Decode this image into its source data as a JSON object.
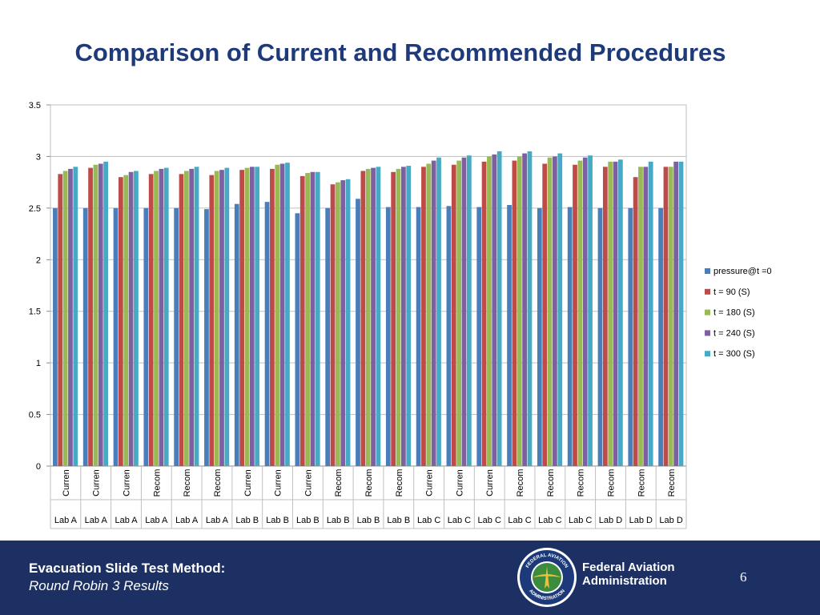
{
  "slide": {
    "title": "Comparison of Current and Recommended Procedures",
    "footer_title": "Evacuation Slide Test Method:",
    "footer_subtitle": "Round Robin 3 Results",
    "agency_line1": "Federal Aviation",
    "agency_line2": "Administration",
    "page_number": "6",
    "seal_text_top": "FEDERAL AVIATION",
    "seal_text_bottom": "ADMINISTRATION"
  },
  "chart_data": {
    "type": "bar",
    "title": "",
    "xlabel": "",
    "ylabel": "",
    "ylim": [
      0,
      3.5
    ],
    "yticks": [
      "0",
      "0.5",
      "1",
      "1.5",
      "2",
      "2.5",
      "3",
      "3.5"
    ],
    "grid": true,
    "legend": "right",
    "procedures": [
      "Curren",
      "Curren",
      "Curren",
      "Recom",
      "Recom",
      "Recom",
      "Curren",
      "Curren",
      "Curren",
      "Recom",
      "Recom",
      "Recom",
      "Curren",
      "Curren",
      "Curren",
      "Recom",
      "Recom",
      "Recom",
      "Recom",
      "Recom",
      "Recom"
    ],
    "labs": [
      "Lab A",
      "Lab A",
      "Lab A",
      "Lab A",
      "Lab A",
      "Lab A",
      "Lab B",
      "Lab B",
      "Lab B",
      "Lab B",
      "Lab B",
      "Lab B",
      "Lab C",
      "Lab C",
      "Lab C",
      "Lab C",
      "Lab C",
      "Lab C",
      "Lab D",
      "Lab D",
      "Lab D"
    ],
    "series": [
      {
        "name": "pressure@t =0",
        "color": "#4a7ebb",
        "values": [
          2.5,
          2.5,
          2.5,
          2.5,
          2.5,
          2.49,
          2.54,
          2.56,
          2.45,
          2.5,
          2.59,
          2.51,
          2.51,
          2.52,
          2.51,
          2.53,
          2.5,
          2.51,
          2.5,
          2.5,
          2.5
        ]
      },
      {
        "name": "t = 90 (S)",
        "color": "#be4b48",
        "values": [
          2.83,
          2.89,
          2.8,
          2.83,
          2.83,
          2.82,
          2.87,
          2.88,
          2.81,
          2.73,
          2.86,
          2.85,
          2.9,
          2.92,
          2.95,
          2.96,
          2.93,
          2.92,
          2.9,
          2.8,
          2.9
        ]
      },
      {
        "name": "t = 180 (S)",
        "color": "#98b954",
        "values": [
          2.86,
          2.92,
          2.82,
          2.86,
          2.86,
          2.86,
          2.89,
          2.92,
          2.84,
          2.75,
          2.88,
          2.88,
          2.93,
          2.96,
          3.0,
          3.0,
          2.99,
          2.96,
          2.95,
          2.9,
          2.9
        ]
      },
      {
        "name": "t = 240 (S)",
        "color": "#7d60a0",
        "values": [
          2.88,
          2.93,
          2.85,
          2.88,
          2.88,
          2.87,
          2.9,
          2.93,
          2.85,
          2.77,
          2.89,
          2.9,
          2.96,
          2.99,
          3.02,
          3.03,
          3.0,
          2.99,
          2.95,
          2.9,
          2.95
        ]
      },
      {
        "name": "t = 300 (S)",
        "color": "#46aac5",
        "values": [
          2.9,
          2.95,
          2.86,
          2.89,
          2.9,
          2.89,
          2.9,
          2.94,
          2.85,
          2.78,
          2.9,
          2.91,
          2.99,
          3.01,
          3.05,
          3.05,
          3.03,
          3.01,
          2.97,
          2.95,
          2.95
        ]
      }
    ]
  }
}
